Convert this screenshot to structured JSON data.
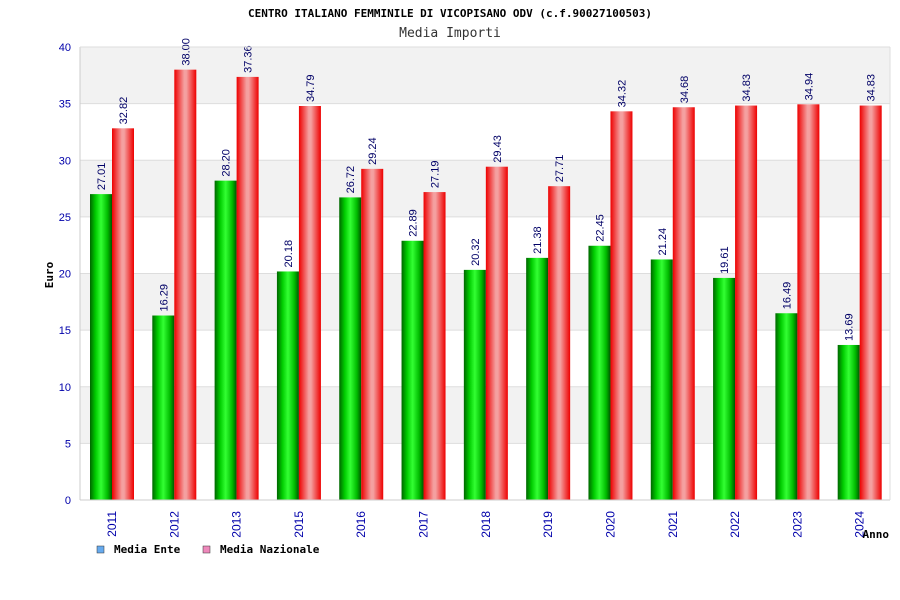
{
  "chart_data": {
    "type": "bar",
    "title": "CENTRO ITALIANO FEMMINILE DI VICOPISANO ODV (c.f.90027100503)",
    "subtitle": "Media Importi",
    "xlabel": "Anno",
    "ylabel": "Euro",
    "ylim": [
      0,
      40
    ],
    "yticks": [
      0,
      5,
      10,
      15,
      20,
      25,
      30,
      35,
      40
    ],
    "grid": true,
    "legend_position": "bottom-left",
    "categories": [
      "2011",
      "2012",
      "2013",
      "2015",
      "2016",
      "2017",
      "2018",
      "2019",
      "2020",
      "2021",
      "2022",
      "2023",
      "2024"
    ],
    "series": [
      {
        "name": "Media Ente",
        "values": [
          27.01,
          16.29,
          28.2,
          20.18,
          26.72,
          22.89,
          20.32,
          21.38,
          22.45,
          21.24,
          19.61,
          16.49,
          13.69
        ],
        "labels": [
          "27.01",
          "16.29",
          "28.20",
          "20.18",
          "26.72",
          "22.89",
          "20.32",
          "21.38",
          "22.45",
          "21.24",
          "19.61",
          "16.49",
          "13.69"
        ],
        "bar_color": "#00bb00",
        "legend_color": "#66aaee"
      },
      {
        "name": "Media Nazionale",
        "values": [
          32.82,
          38.0,
          37.36,
          34.79,
          29.24,
          27.19,
          29.43,
          27.71,
          34.32,
          34.68,
          34.83,
          34.94,
          34.83
        ],
        "labels": [
          "32.82",
          "38.00",
          "37.36",
          "34.79",
          "29.24",
          "27.19",
          "29.43",
          "27.71",
          "34.32",
          "34.68",
          "34.83",
          "34.94",
          "34.83"
        ],
        "bar_color": "#ee1111",
        "legend_color": "#ee88bb"
      }
    ]
  }
}
